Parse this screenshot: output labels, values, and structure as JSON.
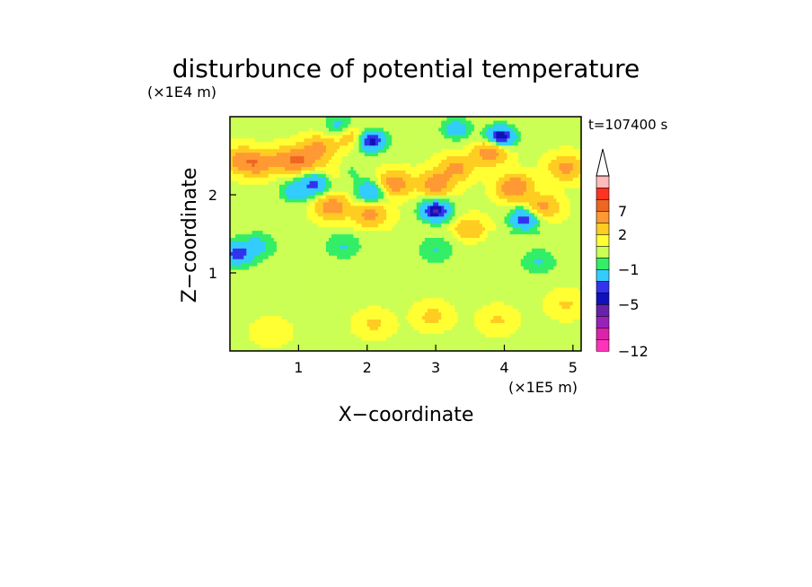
{
  "chart_data": {
    "type": "heatmap",
    "title": "disturbunce of potential temperature",
    "time_label": "t=107400 s",
    "xlabel": "X−coordinate",
    "ylabel": "Z−coordinate",
    "x_scale_label": "(×1E5 m)",
    "y_scale_label": "(×1E4 m)",
    "x_ticks": [
      1,
      2,
      3,
      4,
      5
    ],
    "x_tick_labels": [
      "1",
      "2",
      "3",
      "4",
      "5"
    ],
    "y_ticks": [
      1,
      2
    ],
    "y_tick_labels": [
      "1",
      "2"
    ],
    "xlim": [
      0,
      5.12
    ],
    "ylim": [
      0,
      3
    ],
    "colorbar": {
      "levels": [
        -12,
        -10,
        -8,
        -6,
        -5,
        -4,
        -3,
        -1,
        0,
        1,
        2,
        4,
        7,
        9,
        12
      ],
      "colors": [
        "#ff33bb",
        "#dd22aa",
        "#9922bb",
        "#6622aa",
        "#1111bb",
        "#3333ee",
        "#33ccff",
        "#33ee66",
        "#ccff55",
        "#ffff33",
        "#ffcc22",
        "#ff9933",
        "#ee6622",
        "#ff3322",
        "#ffbbbb"
      ],
      "extend": "max",
      "tick_labels": [
        "7",
        "2",
        "−1",
        "−5",
        "−12"
      ]
    },
    "field_blobs": [
      {
        "x": 0.4,
        "z": 2.4,
        "v": 5
      },
      {
        "x": 0.8,
        "z": 2.45,
        "v": 4
      },
      {
        "x": 1.3,
        "z": 2.6,
        "v": 4
      },
      {
        "x": 1.6,
        "z": 2.3,
        "v": 5
      },
      {
        "x": 1.05,
        "z": 2.45,
        "v": 5
      },
      {
        "x": 1.5,
        "z": 1.85,
        "v": 5
      },
      {
        "x": 2.05,
        "z": 1.75,
        "v": 4
      },
      {
        "x": 2.4,
        "z": 2.15,
        "v": 5
      },
      {
        "x": 3.0,
        "z": 2.15,
        "v": 5
      },
      {
        "x": 3.3,
        "z": 2.35,
        "v": 4
      },
      {
        "x": 3.8,
        "z": 2.55,
        "v": 5
      },
      {
        "x": 4.15,
        "z": 2.1,
        "v": 6
      },
      {
        "x": 4.55,
        "z": 1.85,
        "v": 4
      },
      {
        "x": 4.9,
        "z": 2.35,
        "v": 4
      },
      {
        "x": 0.15,
        "z": 2.45,
        "v": 4
      },
      {
        "x": 1.8,
        "z": 2.75,
        "v": 3
      },
      {
        "x": 3.5,
        "z": 1.55,
        "v": 3
      },
      {
        "x": 2.05,
        "z": 2.7,
        "v": -6
      },
      {
        "x": 1.65,
        "z": 2.3,
        "v": -5
      },
      {
        "x": 2.05,
        "z": 2.05,
        "v": -4
      },
      {
        "x": 3.0,
        "z": 1.8,
        "v": -6
      },
      {
        "x": 3.95,
        "z": 2.75,
        "v": -6
      },
      {
        "x": 4.3,
        "z": 1.7,
        "v": -5
      },
      {
        "x": 1.25,
        "z": 2.15,
        "v": -4
      },
      {
        "x": 0.95,
        "z": 2.05,
        "v": -3
      },
      {
        "x": 0.1,
        "z": 1.25,
        "v": -4
      },
      {
        "x": 0.4,
        "z": 1.35,
        "v": -2
      },
      {
        "x": 1.65,
        "z": 1.35,
        "v": -1.5
      },
      {
        "x": 3.0,
        "z": 1.3,
        "v": -1.5
      },
      {
        "x": 4.5,
        "z": 1.15,
        "v": -1.5
      },
      {
        "x": 3.3,
        "z": 2.85,
        "v": -3
      },
      {
        "x": 1.6,
        "z": 2.9,
        "v": -2.5
      },
      {
        "x": 2.95,
        "z": 0.45,
        "v": 1.6
      },
      {
        "x": 2.1,
        "z": 0.35,
        "v": 1.4
      },
      {
        "x": 3.9,
        "z": 0.4,
        "v": 1.3
      },
      {
        "x": 4.9,
        "z": 0.6,
        "v": 1.3
      },
      {
        "x": 0.6,
        "z": 0.25,
        "v": 1.0
      }
    ]
  }
}
